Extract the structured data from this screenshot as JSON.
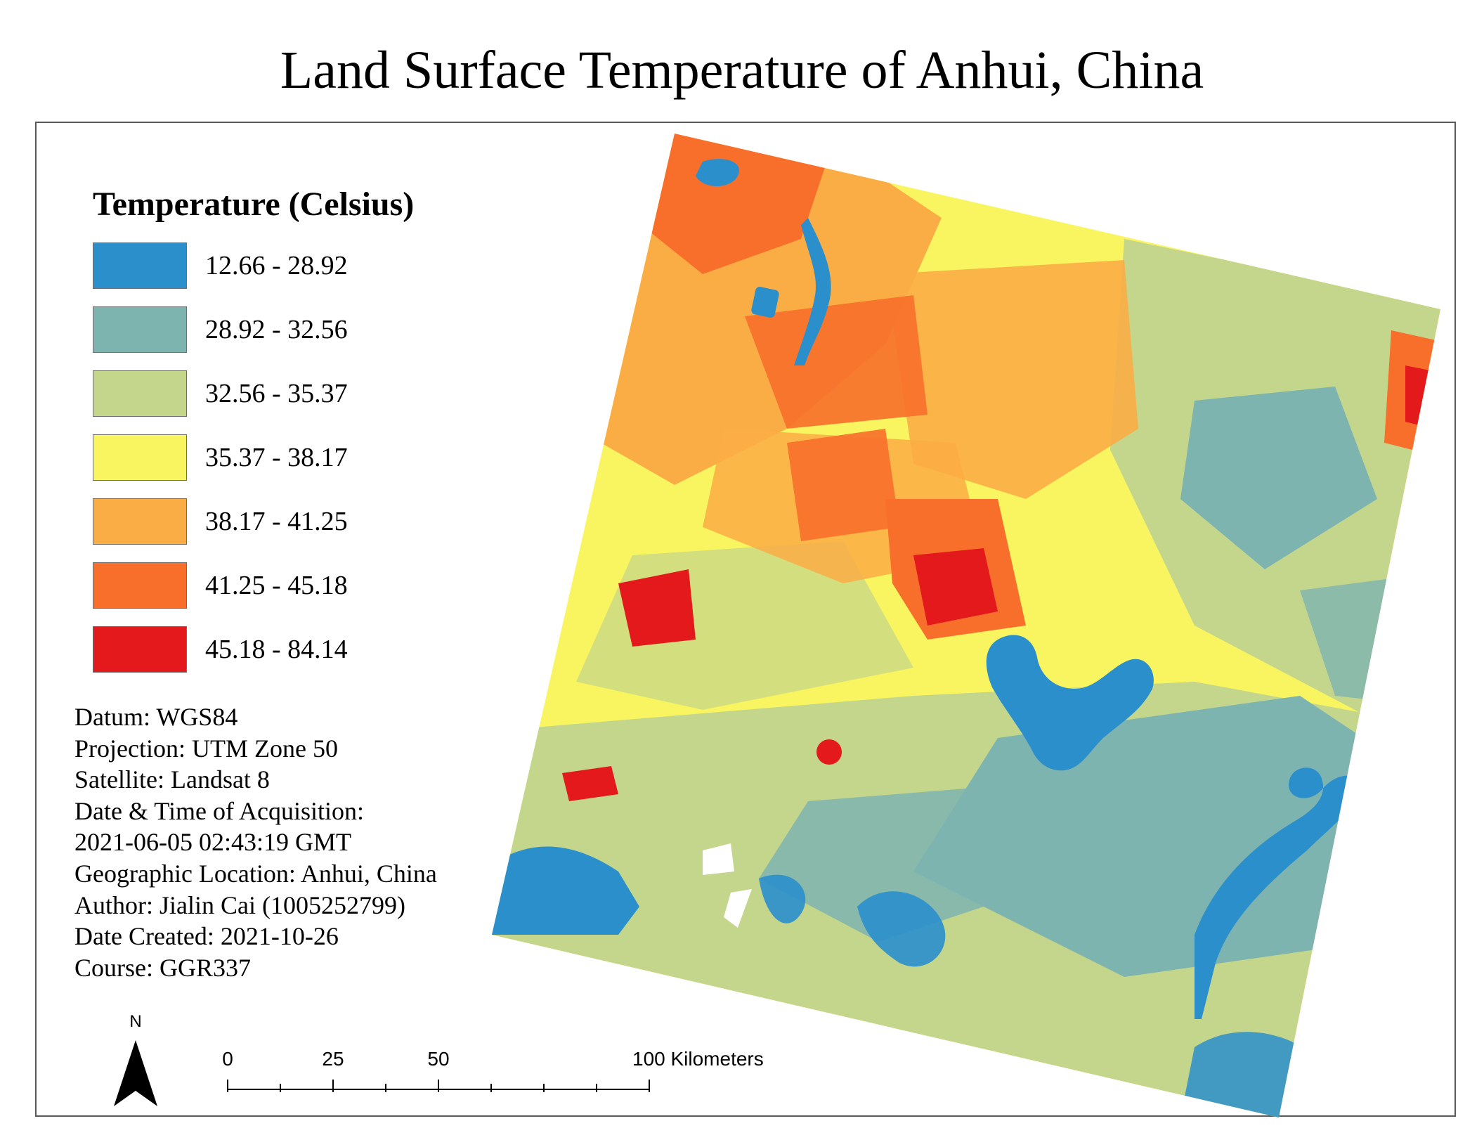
{
  "title": "Land Surface Temperature of Anhui, China",
  "legend": {
    "title": "Temperature (Celsius)",
    "classes": [
      {
        "label": "12.66 - 28.92",
        "color": "#2b8fcc"
      },
      {
        "label": "28.92 - 32.56",
        "color": "#7eb4b0"
      },
      {
        "label": "32.56 - 35.37",
        "color": "#c3d68c"
      },
      {
        "label": "35.37 - 38.17",
        "color": "#f8f560"
      },
      {
        "label": "38.17 - 41.25",
        "color": "#fbad45"
      },
      {
        "label": "41.25 - 45.18",
        "color": "#f76f2b"
      },
      {
        "label": "45.18 - 84.14",
        "color": "#e3191c"
      }
    ]
  },
  "metadata": {
    "lines": [
      "Datum: WGS84",
      "Projection: UTM Zone 50",
      "Satellite: Landsat 8",
      "Date &  Time of Acquisition:",
      "2021-06-05 02:43:19 GMT",
      "Geographic Location: Anhui, China",
      "Author: Jialin Cai (1005252799)",
      "Date Created: 2021-10-26",
      "Course: GGR337"
    ]
  },
  "north_arrow": {
    "label": "N"
  },
  "scale_bar": {
    "labels": [
      "0",
      "25",
      "50",
      "100 Kilometers"
    ]
  },
  "colors": {
    "water": "#2b8fcc",
    "cool": "#7eb4b0",
    "mild": "#c3d68c",
    "warm": "#f8f560",
    "hot": "#fbad45",
    "very_hot": "#f76f2b",
    "extreme": "#e3191c",
    "frame": "#5a5a5a"
  }
}
